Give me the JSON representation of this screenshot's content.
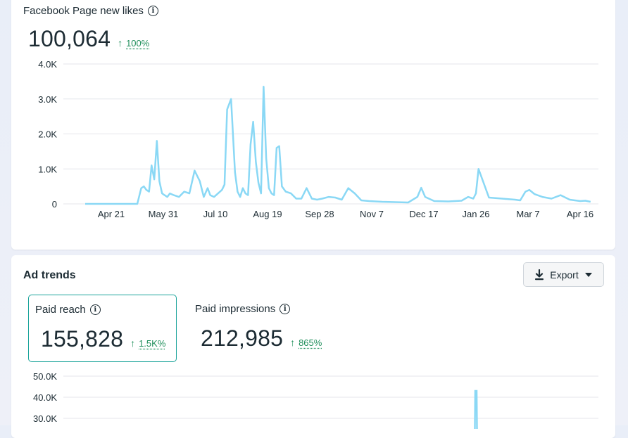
{
  "likes_card": {
    "title": "Facebook Page new likes",
    "total": "100,064",
    "change_pct": "100%"
  },
  "ads_card": {
    "title": "Ad trends",
    "export_label": "Export",
    "metrics": [
      {
        "label": "Paid reach",
        "value": "155,828",
        "change_pct": "1.5K%",
        "selected": true
      },
      {
        "label": "Paid impressions",
        "value": "212,985",
        "change_pct": "865%",
        "selected": false
      }
    ]
  },
  "colors": {
    "series_line": "#8ad8f5",
    "positive_change": "#1e8e5a",
    "selected_tile_border": "#1aa39a"
  },
  "chart_data": [
    {
      "type": "line",
      "title": "Facebook Page new likes",
      "y_ticks": [
        "4.0K",
        "3.0K",
        "2.0K",
        "1.0K",
        "0"
      ],
      "ylim": [
        0,
        4000
      ],
      "x_ticks": [
        "Apr 21",
        "May 31",
        "Jul 10",
        "Aug 19",
        "Sep 28",
        "Nov 7",
        "Dec 17",
        "Jan 26",
        "Mar 7",
        "Apr 16"
      ],
      "grid": true,
      "series": [
        {
          "x": [
            "Apr 1",
            "Apr 21",
            "May 11",
            "May 14",
            "May 16",
            "May 18",
            "May 20",
            "May 22",
            "May 24",
            "May 26",
            "May 28",
            "May 30",
            "Jun 1",
            "Jun 3",
            "Jun 5",
            "Jun 8",
            "Jun 12",
            "Jun 16",
            "Jun 20",
            "Jun 24",
            "Jun 28",
            "Jul 1",
            "Jul 4",
            "Jul 6",
            "Jul 9",
            "Jul 12",
            "Jul 15",
            "Jul 17",
            "Jul 19",
            "Jul 22",
            "Jul 25",
            "Jul 27",
            "Jul 29",
            "Jul 31",
            "Aug 2",
            "Aug 4",
            "Aug 6",
            "Aug 8",
            "Aug 10",
            "Aug 12",
            "Aug 14",
            "Aug 16",
            "Aug 18",
            "Aug 20",
            "Aug 22",
            "Aug 24",
            "Aug 26",
            "Aug 28",
            "Aug 30",
            "Sep 2",
            "Sep 6",
            "Sep 10",
            "Sep 14",
            "Sep 18",
            "Sep 22",
            "Sep 26",
            "Sep 30",
            "Oct 5",
            "Oct 10",
            "Oct 15",
            "Oct 20",
            "Oct 25",
            "Oct 30",
            "Nov 5",
            "Nov 15",
            "Nov 25",
            "Dec 5",
            "Dec 12",
            "Dec 15",
            "Dec 18",
            "Dec 25",
            "Jan 5",
            "Jan 15",
            "Jan 20",
            "Jan 24",
            "Jan 26",
            "Jan 28",
            "Feb 5",
            "Feb 15",
            "Feb 25",
            "Mar 1",
            "Mar 5",
            "Mar 8",
            "Mar 12",
            "Mar 18",
            "Mar 25",
            "Apr 1",
            "Apr 8",
            "Apr 16",
            "Apr 20",
            "Apr 24"
          ],
          "values": [
            0,
            0,
            0,
            450,
            500,
            400,
            350,
            1100,
            700,
            1800,
            650,
            300,
            250,
            200,
            300,
            250,
            200,
            350,
            300,
            950,
            650,
            200,
            450,
            250,
            200,
            300,
            400,
            550,
            2700,
            3000,
            900,
            350,
            200,
            450,
            300,
            250,
            1700,
            2350,
            1200,
            600,
            300,
            3350,
            1300,
            450,
            300,
            250,
            1600,
            1650,
            500,
            350,
            300,
            150,
            150,
            450,
            150,
            120,
            150,
            200,
            180,
            120,
            450,
            300,
            100,
            80,
            60,
            50,
            40,
            200,
            460,
            200,
            80,
            70,
            90,
            200,
            150,
            300,
            1000,
            180,
            150,
            120,
            100,
            350,
            400,
            280,
            200,
            150,
            250,
            120,
            80,
            90,
            60
          ]
        }
      ]
    },
    {
      "type": "line",
      "title": "Paid reach",
      "y_ticks": [
        "50.0K",
        "40.0K",
        "30.0K"
      ],
      "grid": true,
      "series": [
        {
          "x": [
            "Jan 26"
          ],
          "values": [
            43000
          ]
        }
      ]
    }
  ]
}
